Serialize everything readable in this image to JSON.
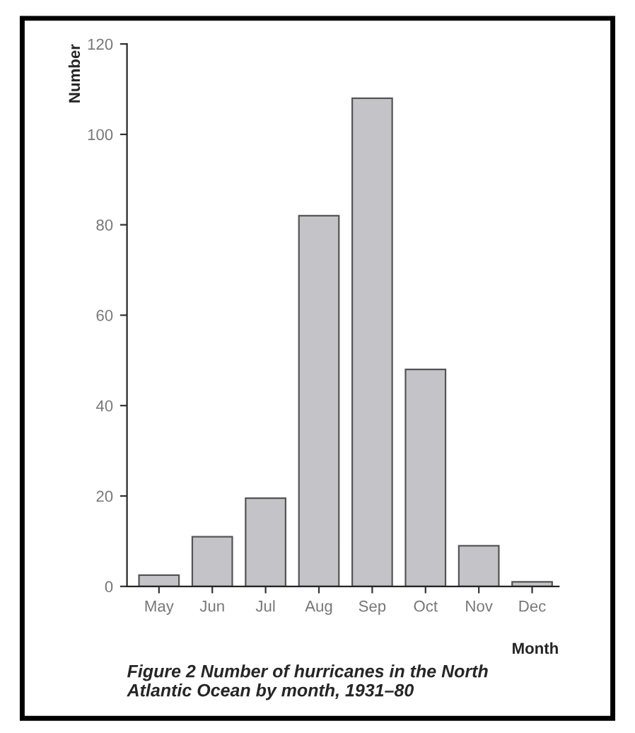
{
  "chart_data": {
    "type": "bar",
    "title": "Figure 2 Number of hurricanes in the North Atlantic Ocean by month, 1931–80",
    "xlabel": "Month",
    "ylabel": "Number",
    "categories": [
      "May",
      "Jun",
      "Jul",
      "Aug",
      "Sep",
      "Oct",
      "Nov",
      "Dec"
    ],
    "values": [
      2.5,
      11,
      19.5,
      82,
      108,
      48,
      9,
      1
    ],
    "color": "#c4c4c8",
    "ylim": [
      0,
      120
    ],
    "yticks": [
      0,
      20,
      40,
      60,
      80,
      100,
      120
    ],
    "grid": false
  }
}
